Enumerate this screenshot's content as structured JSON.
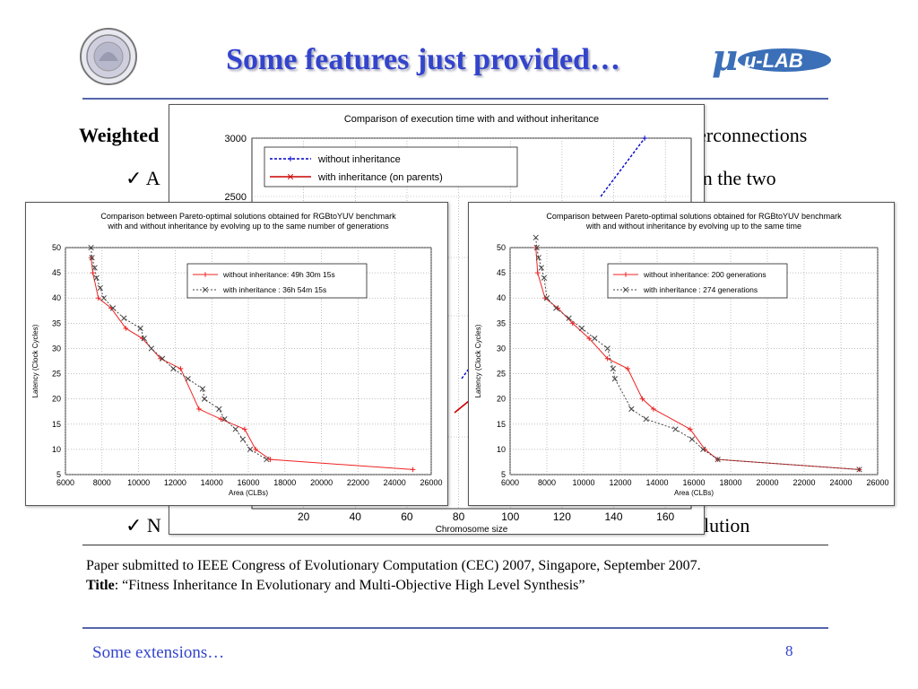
{
  "slide": {
    "title": "Some features just provided…",
    "body_fragments": {
      "weighted": "Weighted",
      "interconnections": "terconnections",
      "check_a": "✓ A",
      "the_two": "en the two",
      "check_n": "✓ N",
      "olution": "olution"
    },
    "paper_note": "Paper submitted to IEEE Congress of Evolutionary Computation (CEC) 2007, Singapore, September 2007.",
    "title_label": "Title",
    "paper_title": ": “Fitness Inheritance In Evolutionary and Multi-Objective High Level Synthesis”",
    "footer_left": "Some extensions…",
    "page_number": "8",
    "logo_left": "university-seal",
    "logo_right_text": "μ-LAB"
  },
  "chart_data": [
    {
      "type": "line",
      "title": "Comparison of execution time with and without inheritance",
      "xlabel": "Chromosome size",
      "ylabel": "",
      "x_ticks": [
        20,
        40,
        60,
        80,
        100,
        120,
        140,
        160
      ],
      "y_ticks": [
        2500,
        3000
      ],
      "series": [
        {
          "name": "without inheritance",
          "color": "#0000cc",
          "marker": "+",
          "x": [
            135,
            152
          ],
          "y": [
            2500,
            3000
          ]
        },
        {
          "name": "with inheritance (on parents)",
          "color": "#cc0000",
          "marker": "x",
          "x": [],
          "y": []
        }
      ]
    },
    {
      "type": "line",
      "title": "Comparison between Pareto-optimal solutions obtained for RGBtoYUV benchmark\nwith and without inheritance by evolving up to the same number of generations",
      "xlabel": "Area (CLBs)",
      "ylabel": "Latency (Clock Cycles)",
      "xlim": [
        6000,
        26000
      ],
      "ylim": [
        5,
        50
      ],
      "x_ticks": [
        6000,
        8000,
        10000,
        12000,
        14000,
        16000,
        18000,
        20000,
        22000,
        24000,
        26000
      ],
      "y_ticks": [
        5,
        10,
        15,
        20,
        25,
        30,
        35,
        40,
        45,
        50
      ],
      "grid": true,
      "series": [
        {
          "name": "without inheritance: 49h 30m 15s",
          "color": "#ee2222",
          "marker": "+",
          "dash": false,
          "x": [
            7400,
            7500,
            7800,
            8500,
            9300,
            10200,
            11200,
            12300,
            13300,
            14500,
            15800,
            16400,
            17200,
            25000
          ],
          "y": [
            48,
            45,
            40,
            38,
            34,
            32,
            28,
            26,
            18,
            16,
            14,
            10,
            8,
            6
          ]
        },
        {
          "name": "with inheritance    : 36h 54m 15s",
          "color": "#444444",
          "marker": "x",
          "dash": true,
          "x": [
            7400,
            7450,
            7600,
            7700,
            7900,
            8100,
            8600,
            9200,
            10100,
            10300,
            10700,
            11300,
            11900,
            12700,
            13500,
            13600,
            14400,
            14700,
            15300,
            15700,
            16100,
            17000
          ],
          "y": [
            50,
            48,
            46,
            44,
            42,
            40,
            38,
            36,
            34,
            32,
            30,
            28,
            26,
            24,
            22,
            20,
            18,
            16,
            14,
            12,
            10,
            8
          ]
        }
      ]
    },
    {
      "type": "line",
      "title": "Comparison between Pareto-optimal solutions obtained for RGBtoYUV benchmark\nwith and without inheritance by evolving up to the same time",
      "xlabel": "Area (CLBs)",
      "ylabel": "Latency (Clock Cycles)",
      "xlim": [
        6000,
        26000
      ],
      "ylim": [
        5,
        50
      ],
      "x_ticks": [
        6000,
        8000,
        10000,
        12000,
        14000,
        16000,
        18000,
        20000,
        22000,
        24000,
        26000
      ],
      "y_ticks": [
        5,
        10,
        15,
        20,
        25,
        30,
        35,
        40,
        45,
        50
      ],
      "grid": true,
      "series": [
        {
          "name": "without inheritance: 200 generations",
          "color": "#ee2222",
          "marker": "+",
          "dash": false,
          "x": [
            7400,
            7500,
            7900,
            8600,
            9400,
            10300,
            11300,
            12400,
            13200,
            13800,
            15800,
            16600,
            17300,
            25000
          ],
          "y": [
            50,
            45,
            40,
            38,
            35,
            32,
            28,
            26,
            20,
            18,
            14,
            10,
            8,
            6
          ]
        },
        {
          "name": "with inheritance    : 274 generations",
          "color": "#444444",
          "marker": "x",
          "dash": true,
          "x": [
            7400,
            7450,
            7550,
            7700,
            7850,
            8000,
            8500,
            9200,
            9900,
            10600,
            11300,
            11600,
            11700,
            12600,
            13400,
            15000,
            15900,
            16500,
            17300,
            25000
          ],
          "y": [
            52,
            50,
            48,
            46,
            44,
            40,
            38,
            36,
            34,
            32,
            30,
            26,
            24,
            18,
            16,
            14,
            12,
            10,
            8,
            6
          ]
        }
      ]
    }
  ]
}
